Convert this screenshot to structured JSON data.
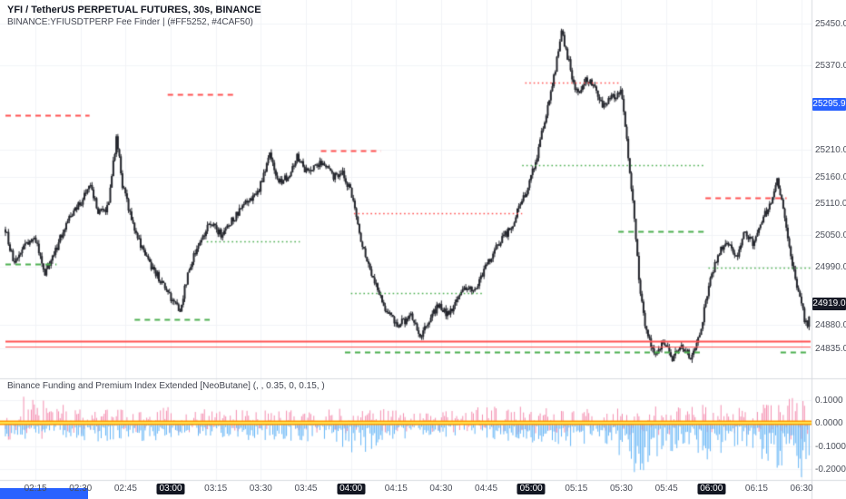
{
  "colors": {
    "background": "#ffffff",
    "candle": "#23252c",
    "level_red": "#ff5252",
    "level_green": "#4caf50",
    "grid": "#f2f4f7",
    "separator": "#d8dbe0",
    "axis_text": "#4a4e59",
    "badge_blue_bg": "#2962ff",
    "badge_dark_bg": "#171a26",
    "funding_blue": "#64b5f6",
    "funding_pink": "#f48fb1",
    "zero_band_orange": "#ff9800",
    "zero_band_yellow": "#ffe54f",
    "bottom_highlight_blue": "#2962ff",
    "hour_label_bg": "#131722"
  },
  "header": {
    "line1": "YFI / TetherUS PERPETUAL FUTURES, 30s, BINANCE",
    "line2": "BINANCE:YFIUSDTPERP Fee Finder |  (#FF5252, #4CAF50)"
  },
  "funding_panel": {
    "legend": "Binance Funding and Premium Index Extended [NeoButane] (, , 0.35, 0, 0.15, )",
    "axis_labels": [
      {
        "text": "0.1000",
        "value": 0.1
      },
      {
        "text": "0.0000",
        "value": 0.0
      },
      {
        "text": "-0.1000",
        "value": -0.1
      },
      {
        "text": "-0.2000",
        "value": -0.2
      }
    ]
  },
  "price_axis": {
    "labels": [
      {
        "text": "25450.0",
        "value": 25450
      },
      {
        "text": "25370.0",
        "value": 25370
      },
      {
        "text": "25210.0",
        "value": 25210
      },
      {
        "text": "25160.0",
        "value": 25160
      },
      {
        "text": "25110.0",
        "value": 25110
      },
      {
        "text": "25050.0",
        "value": 25050
      },
      {
        "text": "24990.0",
        "value": 24990
      },
      {
        "text": "24880.0",
        "value": 24880
      },
      {
        "text": "24835.0",
        "value": 24835
      }
    ],
    "countdown_badge": {
      "text": "25295.9",
      "value": 25295.9
    },
    "last_badge": {
      "text": "24919.0",
      "value": 24919
    }
  },
  "time_axis": {
    "ticks": [
      {
        "text": "02:15",
        "minute": 10,
        "major": false
      },
      {
        "text": "02:30",
        "minute": 25,
        "major": false
      },
      {
        "text": "02:45",
        "minute": 40,
        "major": false
      },
      {
        "text": "03:00",
        "minute": 55,
        "major": true
      },
      {
        "text": "03:15",
        "minute": 70,
        "major": false
      },
      {
        "text": "03:30",
        "minute": 85,
        "major": false
      },
      {
        "text": "03:45",
        "minute": 100,
        "major": false
      },
      {
        "text": "04:00",
        "minute": 115,
        "major": true
      },
      {
        "text": "04:15",
        "minute": 130,
        "major": false
      },
      {
        "text": "04:30",
        "minute": 145,
        "major": false
      },
      {
        "text": "04:45",
        "minute": 160,
        "major": false
      },
      {
        "text": "05:00",
        "minute": 175,
        "major": true
      },
      {
        "text": "05:15",
        "minute": 190,
        "major": false
      },
      {
        "text": "05:30",
        "minute": 205,
        "major": false
      },
      {
        "text": "05:45",
        "minute": 220,
        "major": false
      },
      {
        "text": "06:00",
        "minute": 235,
        "major": true
      },
      {
        "text": "06:15",
        "minute": 250,
        "major": false
      },
      {
        "text": "06:30",
        "minute": 265,
        "major": false
      }
    ]
  },
  "chart_data": {
    "type": "candlestick",
    "title": "YFI / TetherUS PERPETUAL FUTURES, 30s, BINANCE",
    "symbol": "BINANCE:YFIUSDTPERP",
    "interval_seconds": 30,
    "minutes_total": 268,
    "candles_count": 530,
    "noise": 9,
    "price_range": [
      24790,
      25470
    ],
    "last_price": 24919.0,
    "anchors": [
      [
        0,
        25060
      ],
      [
        3,
        24990
      ],
      [
        6,
        25030
      ],
      [
        10,
        25040
      ],
      [
        13,
        24975
      ],
      [
        16,
        25010
      ],
      [
        20,
        25070
      ],
      [
        25,
        25110
      ],
      [
        28,
        25150
      ],
      [
        31,
        25090
      ],
      [
        34,
        25100
      ],
      [
        37,
        25235
      ],
      [
        39,
        25140
      ],
      [
        42,
        25080
      ],
      [
        45,
        25030
      ],
      [
        48,
        24995
      ],
      [
        52,
        24960
      ],
      [
        55,
        24930
      ],
      [
        58,
        24905
      ],
      [
        61,
        24980
      ],
      [
        64,
        25030
      ],
      [
        68,
        25070
      ],
      [
        72,
        25050
      ],
      [
        76,
        25080
      ],
      [
        80,
        25110
      ],
      [
        84,
        25130
      ],
      [
        88,
        25200
      ],
      [
        91,
        25150
      ],
      [
        94,
        25160
      ],
      [
        97,
        25200
      ],
      [
        100,
        25170
      ],
      [
        103,
        25180
      ],
      [
        106,
        25190
      ],
      [
        109,
        25160
      ],
      [
        112,
        25170
      ],
      [
        115,
        25130
      ],
      [
        118,
        25050
      ],
      [
        121,
        24990
      ],
      [
        124,
        24950
      ],
      [
        127,
        24900
      ],
      [
        131,
        24880
      ],
      [
        135,
        24895
      ],
      [
        138,
        24860
      ],
      [
        141,
        24880
      ],
      [
        144,
        24920
      ],
      [
        147,
        24900
      ],
      [
        150,
        24920
      ],
      [
        153,
        24950
      ],
      [
        156,
        24940
      ],
      [
        159,
        24980
      ],
      [
        162,
        25010
      ],
      [
        165,
        25040
      ],
      [
        168,
        25060
      ],
      [
        171,
        25100
      ],
      [
        174,
        25140
      ],
      [
        177,
        25200
      ],
      [
        180,
        25280
      ],
      [
        183,
        25360
      ],
      [
        185,
        25440
      ],
      [
        187,
        25390
      ],
      [
        189,
        25340
      ],
      [
        191,
        25310
      ],
      [
        193,
        25350
      ],
      [
        196,
        25330
      ],
      [
        199,
        25290
      ],
      [
        202,
        25310
      ],
      [
        205,
        25320
      ],
      [
        207,
        25220
      ],
      [
        209,
        25100
      ],
      [
        211,
        24960
      ],
      [
        213,
        24870
      ],
      [
        216,
        24820
      ],
      [
        219,
        24845
      ],
      [
        222,
        24815
      ],
      [
        225,
        24840
      ],
      [
        228,
        24818
      ],
      [
        231,
        24855
      ],
      [
        234,
        24950
      ],
      [
        237,
        25010
      ],
      [
        240,
        25040
      ],
      [
        243,
        25000
      ],
      [
        246,
        25060
      ],
      [
        249,
        25030
      ],
      [
        252,
        25080
      ],
      [
        255,
        25110
      ],
      [
        257,
        25155
      ],
      [
        259,
        25090
      ],
      [
        261,
        25020
      ],
      [
        263,
        24960
      ],
      [
        265,
        24920
      ],
      [
        266,
        24890
      ],
      [
        267,
        24870
      ],
      [
        268,
        24919
      ]
    ],
    "levels": [
      {
        "price": 25276,
        "t0": 0,
        "t1": 28,
        "color": "red",
        "style": "dashed"
      },
      {
        "price": 25315,
        "t0": 54,
        "t1": 76,
        "color": "red",
        "style": "dashed"
      },
      {
        "price": 25209,
        "t0": 105,
        "t1": 125,
        "color": "red",
        "style": "dashed"
      },
      {
        "price": 25090,
        "t0": 116,
        "t1": 172,
        "color": "red",
        "style": "dotted"
      },
      {
        "price": 25338,
        "t0": 173,
        "t1": 205,
        "color": "red",
        "style": "dotted"
      },
      {
        "price": 25120,
        "t0": 233,
        "t1": 260,
        "color": "red",
        "style": "dashed"
      },
      {
        "price": 24995,
        "t0": 0,
        "t1": 17,
        "color": "green",
        "style": "dashed"
      },
      {
        "price": 24890,
        "t0": 43,
        "t1": 68,
        "color": "green",
        "style": "dashed"
      },
      {
        "price": 25037,
        "t0": 67,
        "t1": 98,
        "color": "green",
        "style": "dotted"
      },
      {
        "price": 24940,
        "t0": 115,
        "t1": 159,
        "color": "green",
        "style": "dotted"
      },
      {
        "price": 25182,
        "t0": 172,
        "t1": 233,
        "color": "green",
        "style": "dotted"
      },
      {
        "price": 25056,
        "t0": 204,
        "t1": 233,
        "color": "green",
        "style": "dashed"
      },
      {
        "price": 24988,
        "t0": 234,
        "t1": 268,
        "color": "green",
        "style": "dotted"
      },
      {
        "price": 24848,
        "t0": 0,
        "t1": 268,
        "color": "red",
        "style": "solid",
        "width": 2
      },
      {
        "price": 24838,
        "t0": 0,
        "t1": 268,
        "color": "red",
        "style": "solid",
        "width": 1.2
      },
      {
        "price": 24828,
        "t0": 113,
        "t1": 232,
        "color": "green",
        "style": "dashed"
      },
      {
        "price": 24828,
        "t0": 258,
        "t1": 268,
        "color": "green",
        "style": "dashed"
      }
    ],
    "funding": {
      "range": [
        -0.235,
        0.135
      ],
      "zero_line": 0,
      "blue_amp": [
        [
          0,
          0.05
        ],
        [
          15,
          0.04
        ],
        [
          30,
          0.05
        ],
        [
          45,
          0.06
        ],
        [
          55,
          0.05
        ],
        [
          70,
          0.04
        ],
        [
          85,
          0.05
        ],
        [
          100,
          0.05
        ],
        [
          112,
          0.07
        ],
        [
          118,
          0.09
        ],
        [
          125,
          0.06
        ],
        [
          135,
          0.05
        ],
        [
          145,
          0.04
        ],
        [
          160,
          0.04
        ],
        [
          172,
          0.06
        ],
        [
          180,
          0.05
        ],
        [
          188,
          0.07
        ],
        [
          196,
          0.05
        ],
        [
          204,
          0.09
        ],
        [
          210,
          0.14
        ],
        [
          215,
          0.13
        ],
        [
          222,
          0.09
        ],
        [
          228,
          0.07
        ],
        [
          234,
          0.12
        ],
        [
          238,
          0.09
        ],
        [
          244,
          0.07
        ],
        [
          250,
          0.1
        ],
        [
          256,
          0.12
        ],
        [
          261,
          0.16
        ],
        [
          265,
          0.15
        ],
        [
          268,
          0.12
        ]
      ],
      "pink_amp": [
        [
          0,
          0.07
        ],
        [
          8,
          0.09
        ],
        [
          15,
          0.06
        ],
        [
          25,
          0.05
        ],
        [
          40,
          0.04
        ],
        [
          55,
          0.05
        ],
        [
          70,
          0.04
        ],
        [
          85,
          0.05
        ],
        [
          100,
          0.04
        ],
        [
          115,
          0.05
        ],
        [
          130,
          0.04
        ],
        [
          145,
          0.04
        ],
        [
          160,
          0.05
        ],
        [
          175,
          0.05
        ],
        [
          190,
          0.04
        ],
        [
          205,
          0.07
        ],
        [
          215,
          0.06
        ],
        [
          225,
          0.05
        ],
        [
          235,
          0.06
        ],
        [
          245,
          0.05
        ],
        [
          255,
          0.06
        ],
        [
          262,
          0.08
        ],
        [
          268,
          0.06
        ]
      ]
    }
  }
}
